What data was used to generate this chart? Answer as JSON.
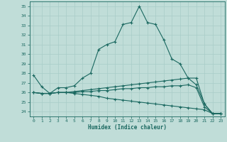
{
  "title": "",
  "xlabel": "Humidex (Indice chaleur)",
  "xlim": [
    -0.5,
    23.5
  ],
  "ylim": [
    23.5,
    35.5
  ],
  "yticks": [
    24,
    25,
    26,
    27,
    28,
    29,
    30,
    31,
    32,
    33,
    34,
    35
  ],
  "xticks": [
    0,
    1,
    2,
    3,
    4,
    5,
    6,
    7,
    8,
    9,
    10,
    11,
    12,
    13,
    14,
    15,
    16,
    17,
    18,
    19,
    20,
    21,
    22,
    23
  ],
  "bg_color": "#c0ddd8",
  "grid_color": "#a8ccc8",
  "line_color": "#1a6860",
  "line1_y": [
    27.8,
    26.6,
    25.9,
    26.5,
    26.5,
    26.7,
    27.5,
    28.0,
    30.5,
    31.0,
    31.3,
    33.1,
    33.3,
    35.0,
    33.3,
    33.1,
    31.5,
    29.5,
    29.0,
    27.5,
    27.5,
    24.8,
    23.8,
    23.8
  ],
  "line2_y": [
    26.0,
    25.9,
    25.9,
    26.0,
    26.0,
    26.1,
    26.2,
    26.3,
    26.4,
    26.5,
    26.6,
    26.7,
    26.8,
    26.9,
    27.0,
    27.1,
    27.2,
    27.3,
    27.4,
    27.5,
    26.8,
    24.8,
    23.8,
    23.8
  ],
  "line3_y": [
    26.0,
    25.9,
    25.9,
    26.0,
    26.0,
    26.0,
    26.1,
    26.1,
    26.2,
    26.2,
    26.3,
    26.4,
    26.4,
    26.5,
    26.5,
    26.6,
    26.6,
    26.7,
    26.7,
    26.8,
    26.5,
    24.5,
    23.8,
    23.8
  ],
  "line4_y": [
    26.0,
    25.9,
    25.9,
    26.0,
    26.0,
    25.9,
    25.8,
    25.7,
    25.6,
    25.4,
    25.3,
    25.2,
    25.1,
    25.0,
    24.9,
    24.8,
    24.7,
    24.6,
    24.5,
    24.4,
    24.3,
    24.2,
    23.8,
    23.8
  ]
}
